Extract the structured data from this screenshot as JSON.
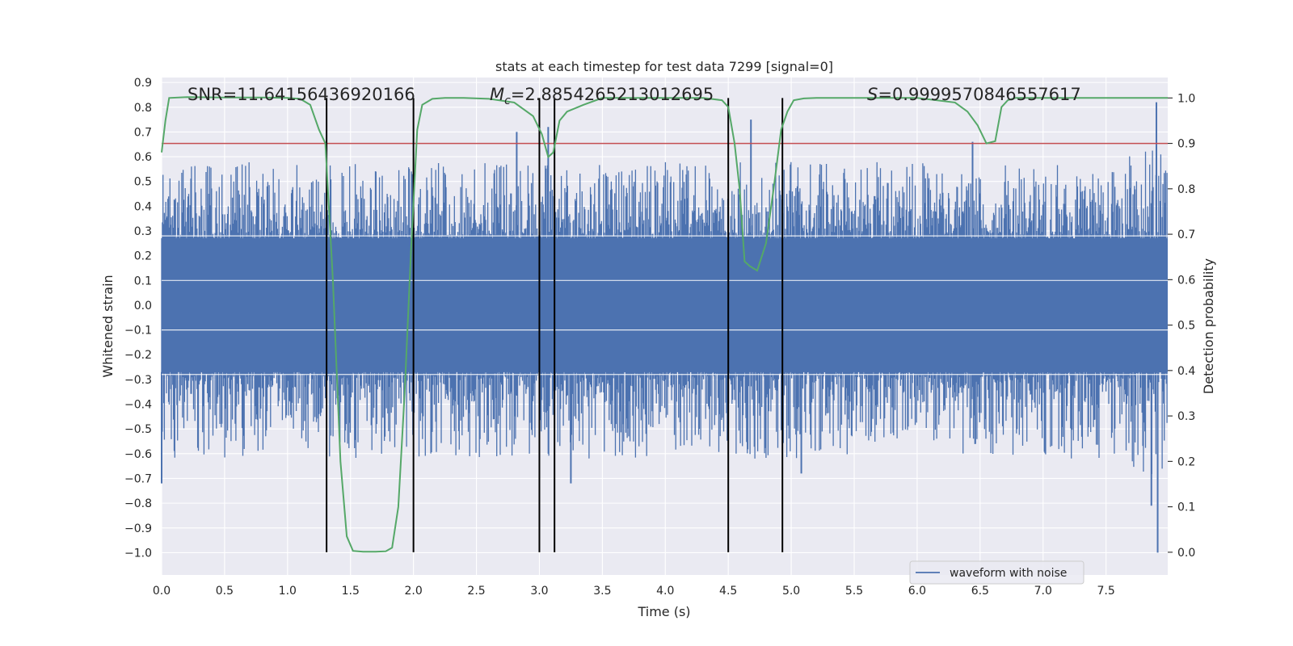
{
  "chart_data": {
    "type": "line",
    "title": "stats at each timestep for test data 7299 [signal=0]",
    "xlabel": "Time (s)",
    "ylabel": "Whitened strain",
    "ylabel_right": "Detection probability",
    "xlim": [
      0.0,
      7.99
    ],
    "ylim": [
      -1.09,
      0.92
    ],
    "ylim_right": [
      -0.05,
      1.045
    ],
    "x_ticks": [
      "0.0",
      "0.5",
      "1.0",
      "1.5",
      "2.0",
      "2.5",
      "3.0",
      "3.5",
      "4.0",
      "4.5",
      "5.0",
      "5.5",
      "6.0",
      "6.5",
      "7.0",
      "7.5"
    ],
    "y_ticks": [
      "0.9",
      "0.8",
      "0.7",
      "0.6",
      "0.5",
      "0.4",
      "0.3",
      "0.2",
      "0.1",
      "0.0",
      "-0.1",
      "-0.2",
      "-0.3",
      "-0.4",
      "-0.5",
      "-0.6",
      "-0.7",
      "-0.8",
      "-0.9",
      "-1.0"
    ],
    "y_ticks_right": [
      "1.0",
      "0.9",
      "0.8",
      "0.7",
      "0.6",
      "0.5",
      "0.4",
      "0.3",
      "0.2",
      "0.1",
      "0.0"
    ],
    "annotations": {
      "snr": "SNR=11.64156436920166",
      "mc_symbol": "M",
      "mc_sub": "c",
      "mc_value": "=2.8854265213012695",
      "s_symbol": "S",
      "s_value": "=0.9999570846557617"
    },
    "series": [
      {
        "name": "waveform with noise",
        "color": "#4c72b0",
        "axis": "left",
        "envelope_summary": {
          "core_band": [
            -0.27,
            0.27
          ],
          "typical_peak": 0.5,
          "max": 0.82,
          "min": -1.0,
          "notable_spikes": [
            {
              "x": 2.82,
              "y": 0.7
            },
            {
              "x": 3.07,
              "y": 0.72
            },
            {
              "x": 4.68,
              "y": 0.75
            },
            {
              "x": 6.44,
              "y": 0.66
            },
            {
              "x": 7.9,
              "y": 0.82
            },
            {
              "x": 7.91,
              "y": -1.0
            },
            {
              "x": 0.0,
              "y": -0.72
            },
            {
              "x": 3.25,
              "y": -0.72
            },
            {
              "x": 5.08,
              "y": -0.68
            },
            {
              "x": 7.86,
              "y": -0.81
            }
          ]
        }
      },
      {
        "name": "detection probability",
        "color": "#55a868",
        "axis": "right",
        "x": [
          0.0,
          0.03,
          0.06,
          0.2,
          0.5,
          0.8,
          1.0,
          1.1,
          1.18,
          1.25,
          1.3,
          1.36,
          1.42,
          1.47,
          1.52,
          1.6,
          1.7,
          1.78,
          1.83,
          1.88,
          1.93,
          1.98,
          2.03,
          2.07,
          2.15,
          2.25,
          2.4,
          2.6,
          2.8,
          2.95,
          3.02,
          3.07,
          3.11,
          3.16,
          3.22,
          3.35,
          3.5,
          3.7,
          4.0,
          4.3,
          4.45,
          4.5,
          4.55,
          4.59,
          4.63,
          4.67,
          4.73,
          4.8,
          4.86,
          4.92,
          4.97,
          5.02,
          5.1,
          5.2,
          5.6,
          6.0,
          6.3,
          6.4,
          6.48,
          6.55,
          6.62,
          6.67,
          6.72,
          6.78,
          6.85,
          7.0,
          7.5,
          7.99
        ],
        "y": [
          0.88,
          0.95,
          1.0,
          1.002,
          1.001,
          1.001,
          1.0,
          0.998,
          0.985,
          0.93,
          0.9,
          0.6,
          0.2,
          0.035,
          0.003,
          0.001,
          0.001,
          0.002,
          0.01,
          0.1,
          0.35,
          0.66,
          0.93,
          0.985,
          0.998,
          1.0,
          1.0,
          0.998,
          0.99,
          0.96,
          0.92,
          0.87,
          0.88,
          0.95,
          0.97,
          0.985,
          1.0,
          1.0,
          1.0,
          1.0,
          0.995,
          0.98,
          0.9,
          0.8,
          0.64,
          0.63,
          0.62,
          0.68,
          0.8,
          0.93,
          0.97,
          0.995,
          0.999,
          1.0,
          1.0,
          1.0,
          0.99,
          0.97,
          0.94,
          0.9,
          0.905,
          0.98,
          0.995,
          1.0,
          1.0,
          1.0,
          1.0,
          1.0
        ]
      }
    ],
    "threshold_line": {
      "axis": "right",
      "y": 0.9,
      "color": "#c44e52"
    },
    "vertical_markers": [
      1.31,
      2.0,
      3.0,
      3.12,
      4.5,
      4.93
    ],
    "marker_right_range": [
      0.0,
      1.0
    ],
    "legend": {
      "position": "lower-right",
      "entries": [
        "waveform with noise"
      ]
    },
    "grid": true,
    "style_colors": {
      "plot_bg": "#eaeaf2",
      "grid": "#ffffff",
      "text": "#262626",
      "marker": "#000000"
    }
  }
}
